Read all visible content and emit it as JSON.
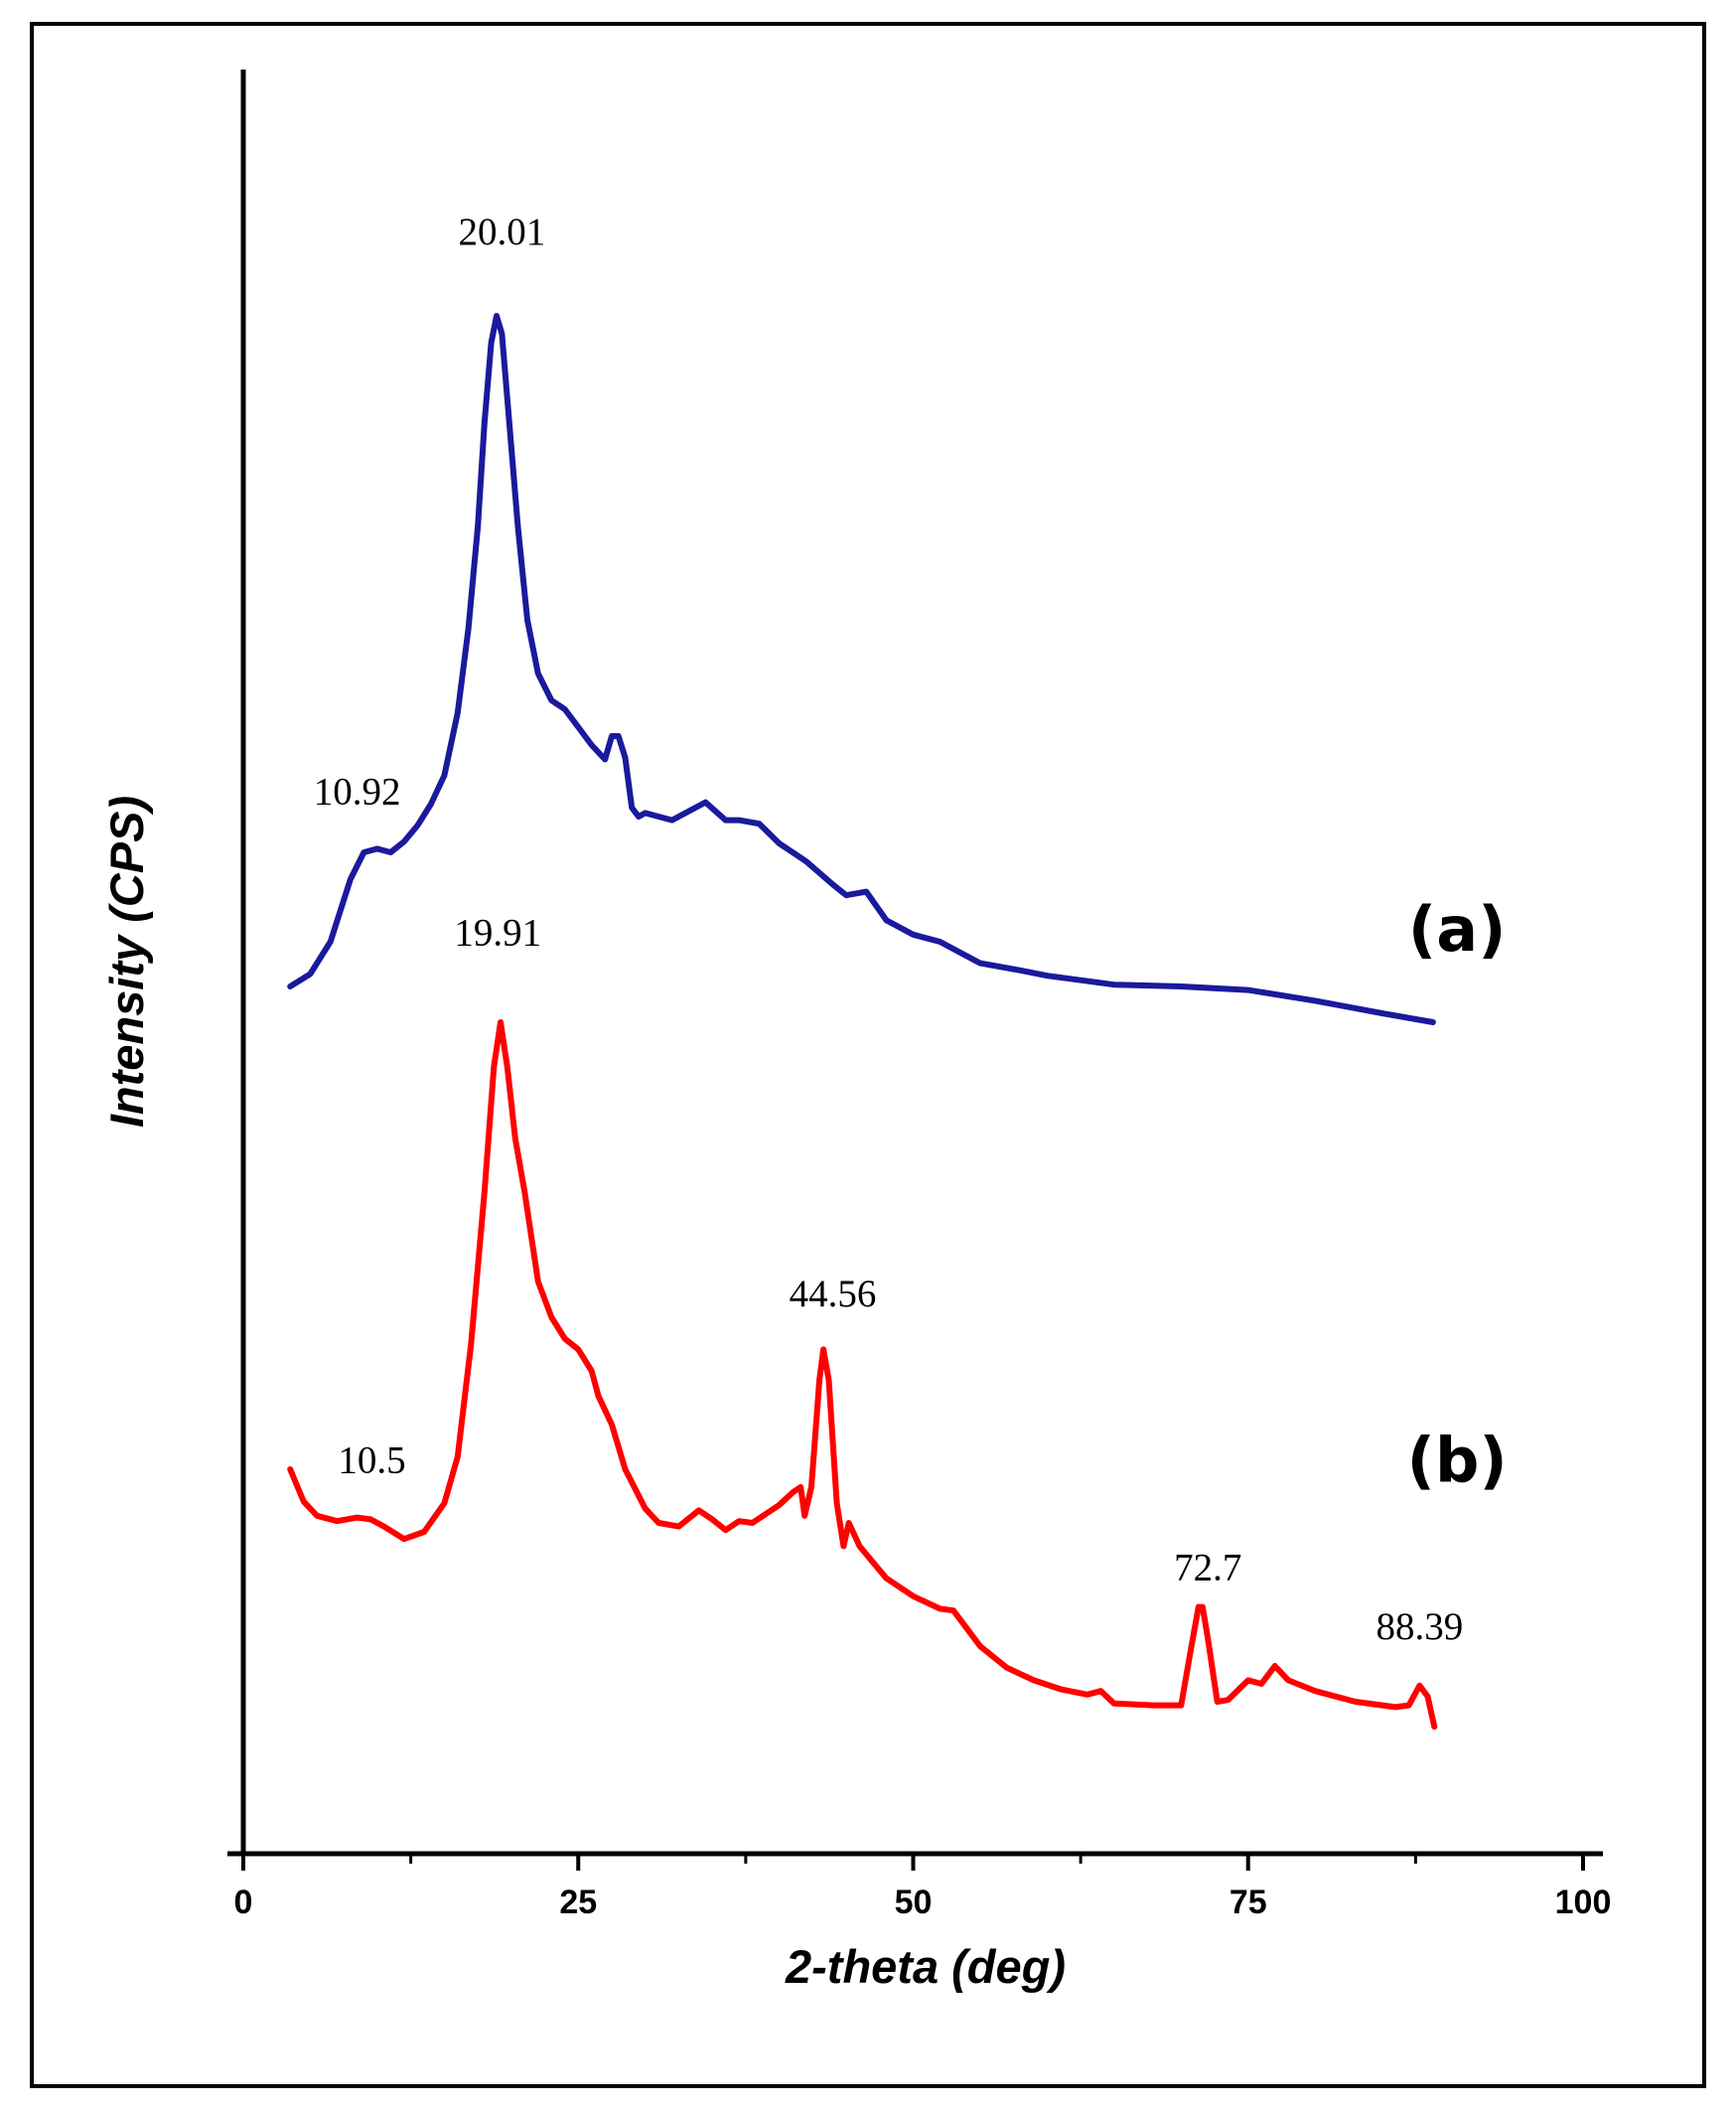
{
  "chart_data": {
    "type": "line",
    "title": "",
    "xlabel": "2-theta (deg)",
    "ylabel": "Intensity (CPS)",
    "xlim": [
      0,
      100
    ],
    "ylim": [
      0,
      100
    ],
    "x_ticks": [
      0,
      25,
      50,
      75,
      100
    ],
    "x_tick_labels": [
      "0",
      "25",
      "50",
      "75",
      "100"
    ],
    "grid": false,
    "series": [
      {
        "name": "(a)",
        "color": "#1a1a9c",
        "x": [
          3.5,
          5,
          6.5,
          8,
          9,
          10,
          11,
          12,
          13,
          14,
          15,
          16,
          16.8,
          17.5,
          18,
          18.5,
          18.9,
          19.3,
          19.8,
          20.5,
          21.2,
          22,
          23,
          24,
          25,
          26,
          27,
          27.5,
          28,
          28.5,
          29,
          29.5,
          30,
          31,
          32,
          33,
          34.5,
          36,
          37,
          38.5,
          40,
          42,
          44,
          45,
          46.5,
          48,
          50,
          52,
          55,
          58,
          60,
          65,
          70,
          75,
          80,
          85,
          88.8
        ],
        "y": [
          48.5,
          49.2,
          51.0,
          54.5,
          56.0,
          56.2,
          56.0,
          56.6,
          57.5,
          58.7,
          60.3,
          63.8,
          68.5,
          74.2,
          80.0,
          84.5,
          86.0,
          85.0,
          80.5,
          74.2,
          69.0,
          66.0,
          64.5,
          64.0,
          63.0,
          62.0,
          61.2,
          62.5,
          62.5,
          61.3,
          58.5,
          58.0,
          58.2,
          58.0,
          57.8,
          58.2,
          58.8,
          57.8,
          57.8,
          57.6,
          56.5,
          55.5,
          54.2,
          53.6,
          53.8,
          52.2,
          51.4,
          51.0,
          49.8,
          49.4,
          49.1,
          48.6,
          48.5,
          48.3,
          47.7,
          47.0,
          46.5
        ]
      },
      {
        "name": "(b)",
        "color": "#ff0000",
        "x": [
          3.5,
          4.5,
          5.5,
          7,
          8.5,
          9.5,
          10.5,
          12,
          13.5,
          15,
          16,
          17,
          18,
          18.7,
          19.2,
          19.7,
          20.3,
          21,
          22,
          23,
          24,
          25,
          26,
          26.5,
          27.5,
          28.5,
          30,
          31,
          32.5,
          34,
          35,
          36,
          37,
          38,
          40,
          41,
          41.6,
          41.9,
          42.4,
          43,
          43.3,
          43.7,
          44.3,
          44.8,
          45.2,
          46,
          48,
          50,
          52,
          53,
          55,
          57,
          59,
          61,
          63,
          64,
          65,
          68,
          70,
          70.7,
          71.3,
          71.6,
          72,
          72.7,
          73.5,
          75,
          76,
          77,
          78,
          80,
          83,
          86,
          87,
          87.8,
          88.4,
          88.9
        ],
        "y": [
          21.5,
          19.7,
          18.9,
          18.6,
          18.8,
          18.7,
          18.3,
          17.6,
          18.0,
          19.6,
          22.2,
          28.5,
          37.0,
          44.0,
          46.5,
          44.0,
          40.0,
          37.0,
          32.0,
          30.0,
          28.8,
          28.2,
          27.0,
          25.6,
          24.0,
          21.5,
          19.3,
          18.5,
          18.3,
          19.2,
          18.7,
          18.1,
          18.6,
          18.5,
          19.5,
          20.2,
          20.5,
          18.9,
          20.5,
          26.5,
          28.2,
          26.5,
          19.6,
          17.2,
          18.5,
          17.2,
          15.4,
          14.4,
          13.7,
          13.6,
          11.6,
          10.4,
          9.7,
          9.2,
          8.9,
          9.1,
          8.4,
          8.3,
          8.3,
          11.3,
          13.8,
          13.8,
          12.0,
          8.5,
          8.6,
          9.7,
          9.5,
          10.5,
          9.7,
          9.1,
          8.5,
          8.2,
          8.3,
          9.4,
          8.8,
          7.1
        ]
      }
    ],
    "annotations": [
      {
        "text": "20.01",
        "x": 19.3,
        "y": 90.0
      },
      {
        "text": "10.92",
        "x": 8.5,
        "y": 58.7
      },
      {
        "text": "19.91",
        "x": 19.0,
        "y": 50.8
      },
      {
        "text": "10.5",
        "x": 9.6,
        "y": 21.3
      },
      {
        "text": "44.56",
        "x": 44.0,
        "y": 30.6
      },
      {
        "text": "72.7",
        "x": 72.0,
        "y": 15.3
      },
      {
        "text": "88.39",
        "x": 87.8,
        "y": 12.0
      }
    ],
    "series_labels": [
      {
        "text": "(a)",
        "x": 90.6,
        "y": 50.5
      },
      {
        "text": "(b)",
        "x": 90.6,
        "y": 20.8
      }
    ]
  }
}
